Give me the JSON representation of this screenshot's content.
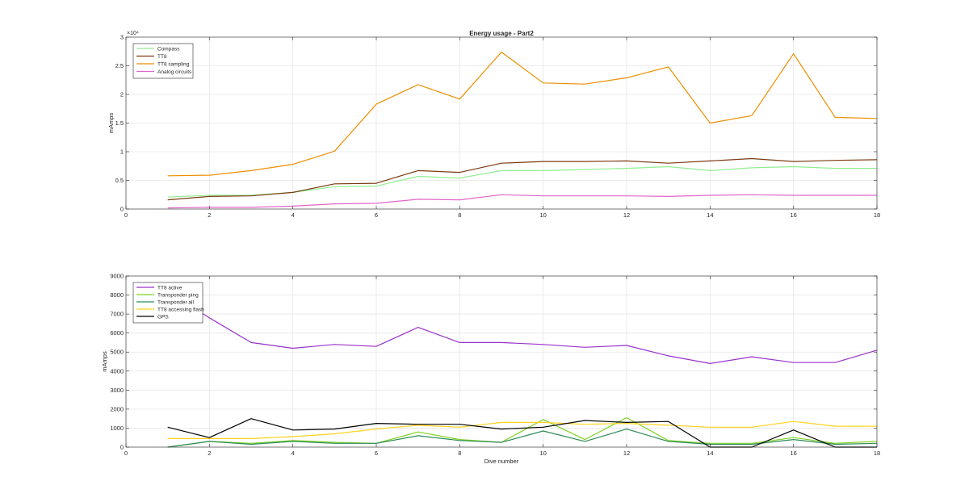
{
  "figure": {
    "title": "Energy usage - Part2"
  },
  "chart_data": [
    {
      "type": "line",
      "title": "Energy usage - Part2",
      "xlabel": "",
      "ylabel": "mAmps",
      "exponent_label": "×10⁴",
      "xlim": [
        0,
        18
      ],
      "ylim": [
        0,
        30000
      ],
      "xticks": [
        0,
        2,
        4,
        6,
        8,
        10,
        12,
        14,
        16,
        18
      ],
      "xtick_labels": [
        "0",
        "2",
        "4",
        "6",
        "8",
        "10",
        "12",
        "14",
        "16",
        "18"
      ],
      "yticks": [
        0,
        5000,
        10000,
        15000,
        20000,
        25000,
        30000
      ],
      "ytick_labels": [
        "0",
        "0.5",
        "1",
        "1.5",
        "2",
        "2.5",
        "3"
      ],
      "grid": true,
      "legend_position": "top-left",
      "x": [
        1,
        2,
        3,
        4,
        5,
        6,
        7,
        8,
        9,
        10,
        11,
        12,
        13,
        14,
        15,
        16,
        17,
        18
      ],
      "series": [
        {
          "name": "Compass",
          "color": "#90ee90",
          "values": [
            2100,
            2400,
            2400,
            2900,
            3900,
            4000,
            5700,
            5400,
            6700,
            6700,
            6900,
            7100,
            7400,
            6700,
            7200,
            7400,
            7100,
            7100
          ]
        },
        {
          "name": "TT8",
          "color": "#7b3a12",
          "values": [
            1600,
            2200,
            2300,
            2900,
            4400,
            4500,
            6700,
            6400,
            8000,
            8300,
            8300,
            8400,
            8000,
            8400,
            8800,
            8300,
            8500,
            8600
          ]
        },
        {
          "name": "TT8 sampling",
          "color": "#ee8e00",
          "values": [
            5800,
            5900,
            6700,
            7800,
            10100,
            18300,
            21700,
            19200,
            27400,
            22000,
            21800,
            22900,
            24800,
            15000,
            16300,
            27100,
            16000,
            15800
          ]
        },
        {
          "name": "Analog circuits",
          "color": "#e066c8",
          "values": [
            200,
            300,
            300,
            500,
            900,
            1000,
            1700,
            1600,
            2500,
            2300,
            2300,
            2300,
            2200,
            2400,
            2500,
            2400,
            2400,
            2400
          ]
        }
      ]
    },
    {
      "type": "line",
      "title": "",
      "xlabel": "Dive number",
      "ylabel": "mAmps",
      "xlim": [
        0,
        18
      ],
      "ylim": [
        0,
        9000
      ],
      "xticks": [
        0,
        2,
        4,
        6,
        8,
        10,
        12,
        14,
        16,
        18
      ],
      "xtick_labels": [
        "0",
        "2",
        "4",
        "6",
        "8",
        "10",
        "12",
        "14",
        "16",
        "18"
      ],
      "yticks": [
        0,
        1000,
        2000,
        3000,
        4000,
        5000,
        6000,
        7000,
        8000,
        9000
      ],
      "ytick_labels": [
        "0",
        "1000",
        "2000",
        "3000",
        "4000",
        "5000",
        "6000",
        "7000",
        "8000",
        "9000"
      ],
      "grid": true,
      "legend_position": "top-left",
      "x": [
        1,
        2,
        3,
        4,
        5,
        6,
        7,
        8,
        9,
        10,
        11,
        12,
        13,
        14,
        15,
        16,
        17,
        18
      ],
      "series": [
        {
          "name": "TT8 active",
          "color": "#9932cc",
          "values": [
            8200,
            6800,
            5500,
            5200,
            5400,
            5300,
            6300,
            5500,
            5500,
            5400,
            5250,
            5350,
            4800,
            4400,
            4750,
            4450,
            4450,
            5100
          ]
        },
        {
          "name": "Transponder ping",
          "color": "#7ed321",
          "values": [
            0,
            300,
            200,
            350,
            250,
            200,
            800,
            400,
            250,
            1450,
            400,
            1550,
            350,
            200,
            200,
            500,
            200,
            300
          ]
        },
        {
          "name": "Transponder all",
          "color": "#2e8b57",
          "values": [
            0,
            300,
            150,
            300,
            200,
            200,
            600,
            350,
            250,
            850,
            300,
            950,
            300,
            150,
            150,
            400,
            150,
            200
          ]
        },
        {
          "name": "TT8 accessing flash",
          "color": "#ffd21f",
          "values": [
            450,
            450,
            450,
            550,
            700,
            950,
            1150,
            1050,
            1300,
            1300,
            1200,
            1250,
            1150,
            1050,
            1050,
            1350,
            1100,
            1100
          ]
        },
        {
          "name": "GPS",
          "color": "#000000",
          "values": [
            1050,
            500,
            1500,
            900,
            950,
            1250,
            1200,
            1200,
            950,
            1050,
            1400,
            1300,
            1350,
            0,
            0,
            900,
            0,
            0
          ]
        }
      ]
    }
  ]
}
